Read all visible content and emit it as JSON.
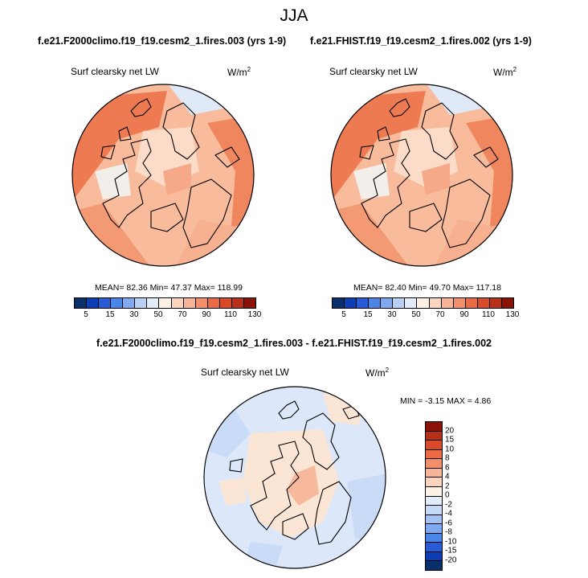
{
  "title": "JJA",
  "panels": [
    {
      "run": "f.e21.F2000climo.f19_f19.cesm2_1.fires.003 (yrs 1-9)",
      "variable": "Surf clearsky net LW",
      "units": "W/m",
      "units_exp": "2",
      "stats": "MEAN=  82.36  Min=  47.37  Max= 118.99"
    },
    {
      "run": "f.e21.FHIST.f19_f19.cesm2_1.fires.002 (yrs 1-9)",
      "variable": "Surf clearsky net LW",
      "units": "W/m",
      "units_exp": "2",
      "stats": "MEAN=  82.40  Min=  49.70  Max= 117.18"
    }
  ],
  "abs_colorbar": {
    "colors": [
      "#08306b",
      "#0c3fb5",
      "#2a5bd7",
      "#4a86e8",
      "#7fa9f0",
      "#b9d0f5",
      "#e2ecfb",
      "#fdf1e6",
      "#fbd4bd",
      "#f8b496",
      "#f3906b",
      "#ea6a45",
      "#d94a28",
      "#b8301a",
      "#8a1208"
    ],
    "labels": [
      "5",
      "15",
      "30",
      "50",
      "70",
      "90",
      "110",
      "130"
    ]
  },
  "diff": {
    "title": "f.e21.F2000climo.f19_f19.cesm2_1.fires.003 - f.e21.FHIST.f19_f19.cesm2_1.fires.002",
    "variable": "Surf clearsky net LW",
    "units": "W/m",
    "units_exp": "2",
    "stats": "MIN =  -3.15 MAX =   4.86",
    "colorbar": {
      "colors_top_to_bottom": [
        "#8a1208",
        "#b8301a",
        "#d94a28",
        "#ea6a45",
        "#f3906b",
        "#f8b496",
        "#fbd4bd",
        "#fdf1e6",
        "#e2ecfb",
        "#c6d9f7",
        "#a4c2f3",
        "#7fa9f0",
        "#4a86e8",
        "#2a5bd7",
        "#0c3fb5",
        "#08306b"
      ],
      "labels_top_to_bottom": [
        "20",
        "15",
        "10",
        "8",
        "6",
        "4",
        "2",
        "0",
        "-2",
        "-4",
        "-6",
        "-8",
        "-10",
        "-15",
        "-20"
      ]
    }
  }
}
